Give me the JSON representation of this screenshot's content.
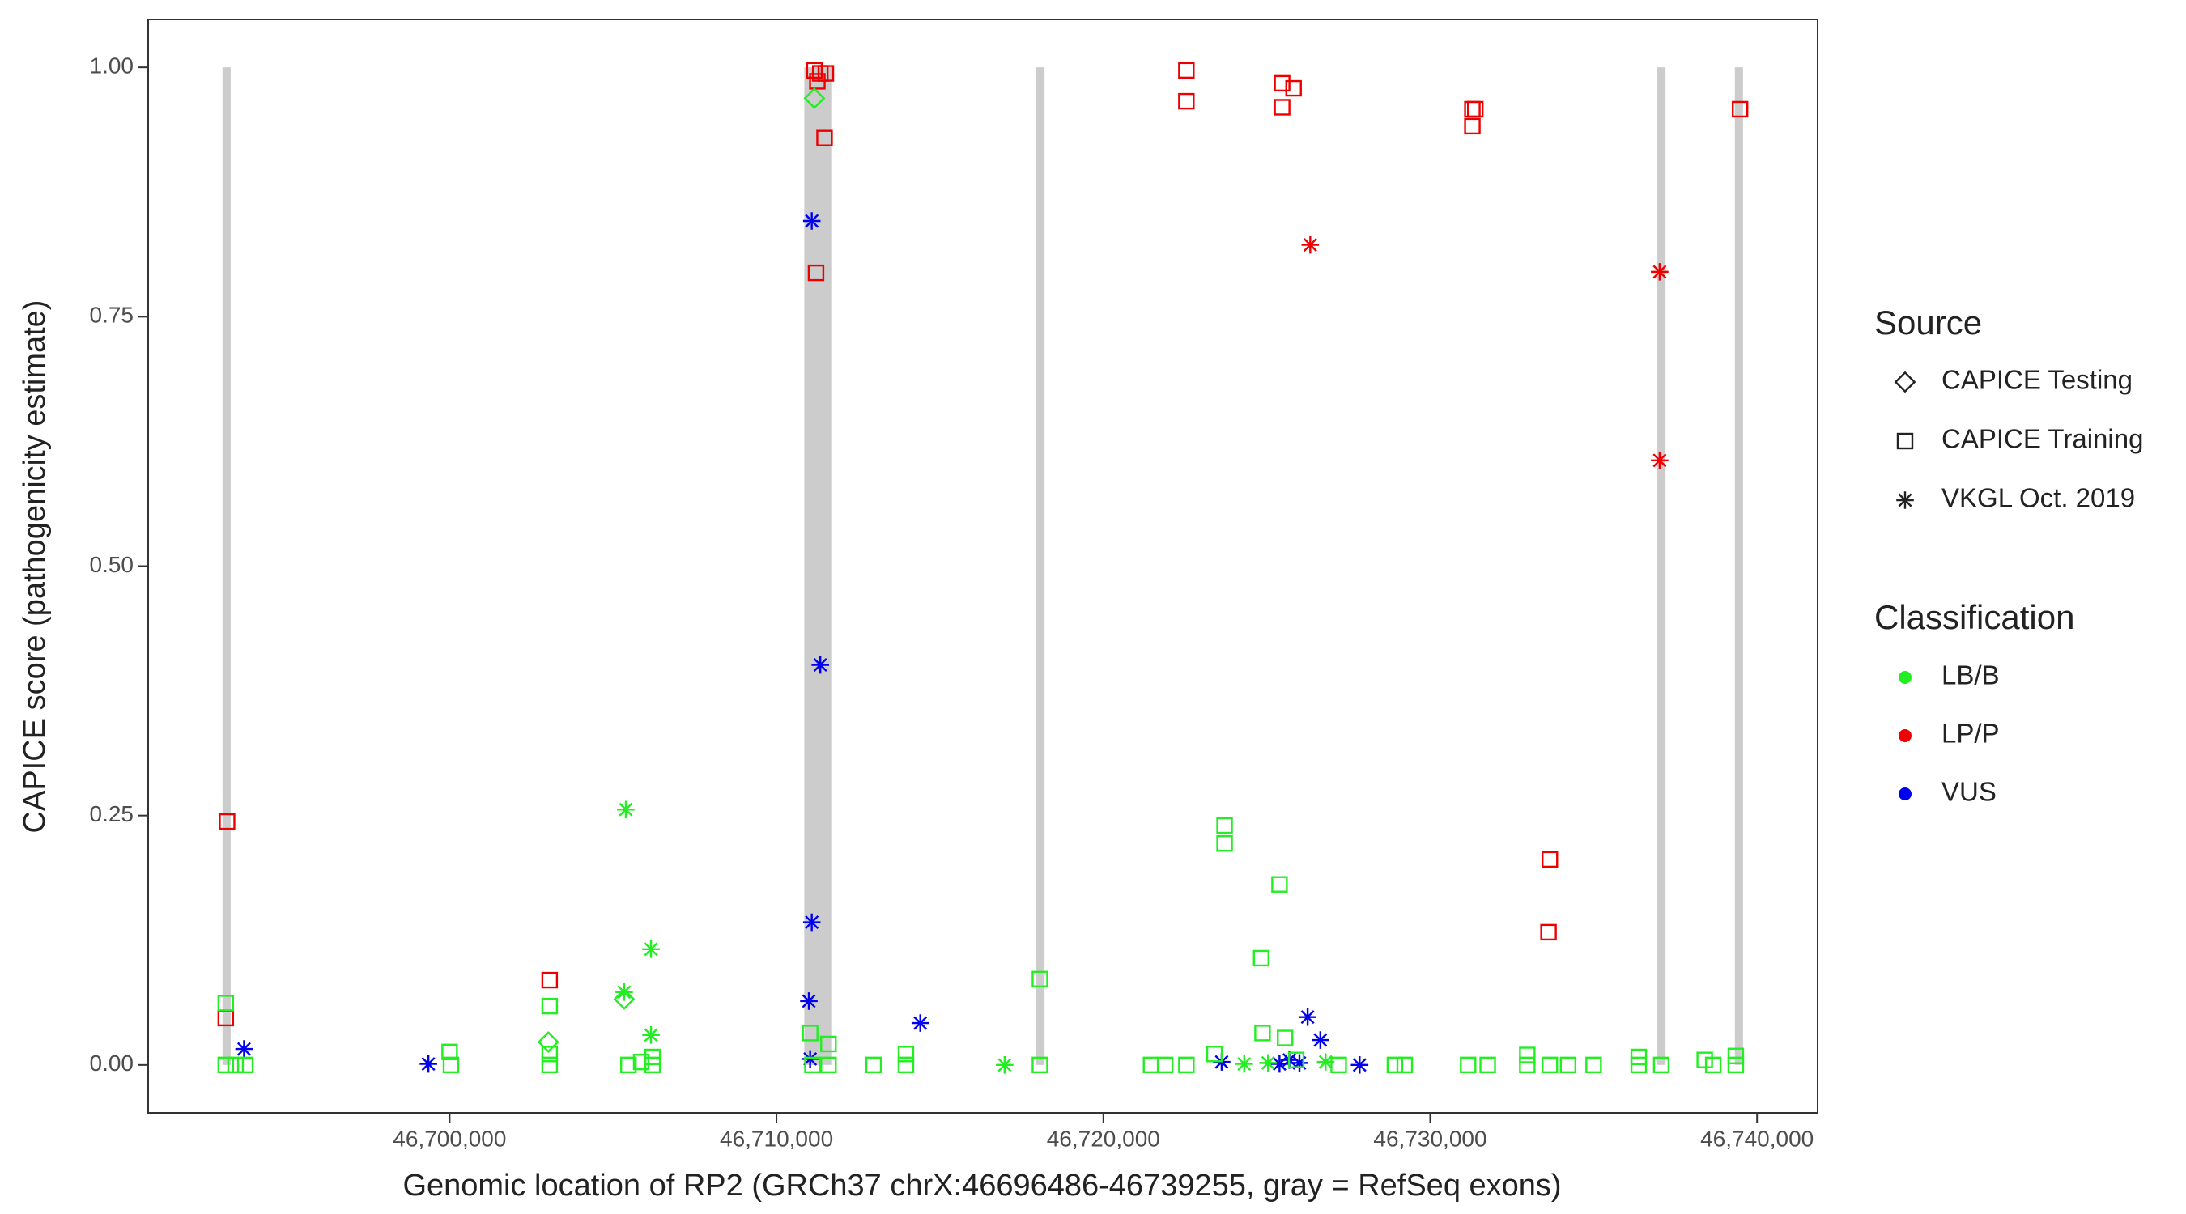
{
  "chart_data": {
    "type": "scatter",
    "xlabel": "Genomic location of RP2 (GRCh37 chrX:46696486-46739255, gray = RefSeq exons)",
    "ylabel": "CAPICE score (pathogenicity estimate)",
    "xlim": [
      46690776,
      46741853
    ],
    "ylim": [
      -0.048,
      1.048
    ],
    "xticks": [
      {
        "value": 46700000,
        "label": "46,700,000"
      },
      {
        "value": 46710000,
        "label": "46,710,000"
      },
      {
        "value": 46720000,
        "label": "46,720,000"
      },
      {
        "value": 46730000,
        "label": "46,730,000"
      },
      {
        "value": 46740000,
        "label": "46,740,000"
      }
    ],
    "yticks": [
      {
        "value": 0,
        "label": "0.00"
      },
      {
        "value": 0.25,
        "label": "0.25"
      },
      {
        "value": 0.5,
        "label": "0.50"
      },
      {
        "value": 0.75,
        "label": "0.75"
      },
      {
        "value": 1,
        "label": "1.00"
      }
    ],
    "exon_color": "#cccccc",
    "exons": [
      [
        46693050,
        46693300
      ],
      [
        46710850,
        46711700
      ],
      [
        46717950,
        46718200
      ],
      [
        46736950,
        46737200
      ],
      [
        46739320,
        46739570
      ]
    ],
    "exon_ylim": [
      0,
      1
    ],
    "legend_source": {
      "title": "Source",
      "items": [
        "CAPICE Testing",
        "CAPICE Training",
        "VKGL Oct. 2019"
      ],
      "shapes": [
        "diamond",
        "square",
        "asterisk"
      ]
    },
    "legend_classification": {
      "title": "Classification",
      "items": [
        "LB/B",
        "LP/P",
        "VUS"
      ],
      "colors": [
        "#22ee22",
        "#ee0000",
        "#0000ee"
      ]
    },
    "series": [
      {
        "source": 1,
        "classification": 1,
        "x": [
          46693190,
          46693150,
          46703060,
          46711160,
          46711340,
          46711510,
          46711250,
          46711470,
          46711210,
          46722540,
          46722540,
          46725470,
          46725470,
          46725820,
          46731290,
          46731380,
          46731290,
          46733660,
          46733620,
          46739480
        ],
        "values": [
          0.244,
          0.047,
          0.085,
          0.997,
          0.994,
          0.994,
          0.986,
          0.929,
          0.794,
          0.997,
          0.966,
          0.984,
          0.96,
          0.979,
          0.958,
          0.958,
          0.941,
          0.206,
          0.133,
          0.958
        ]
      },
      {
        "source": 2,
        "classification": 1,
        "x": [
          46726330,
          46737020,
          46737020
        ],
        "values": [
          0.822,
          0.795,
          0.606
        ]
      },
      {
        "source": 2,
        "classification": 2,
        "x": [
          46693710,
          46699350,
          46711080,
          46711340,
          46711080,
          46710990,
          46711030,
          46714400,
          46726250,
          46726640,
          46727840,
          46725390,
          46725690,
          46723620,
          46726000
        ],
        "values": [
          0.016,
          0.001,
          0.846,
          0.401,
          0.143,
          0.064,
          0.006,
          0.042,
          0.048,
          0.025,
          0,
          0.001,
          0.005,
          0.003,
          0.002
        ]
      },
      {
        "source": 2,
        "classification": 0,
        "x": [
          46705390,
          46706160,
          46705340,
          46706160,
          46716980,
          46724310,
          46725040,
          46726800
        ],
        "values": [
          0.256,
          0.116,
          0.073,
          0.03,
          0,
          0.001,
          0.002,
          0.003
        ]
      },
      {
        "source": 0,
        "classification": 0,
        "x": [
          46711160,
          46703020,
          46705340
        ],
        "values": [
          0.969,
          0.023,
          0.066
        ]
      },
      {
        "source": 1,
        "classification": 0,
        "x": [
          46693150,
          46693150,
          46693450,
          46693750,
          46700000,
          46700040,
          46703060,
          46703060,
          46703060,
          46705470,
          46705860,
          46706210,
          46706210,
          46711030,
          46711590,
          46711590,
          46712970,
          46713960,
          46713960,
          46718060,
          46718060,
          46721460,
          46721890,
          46722540,
          46723400,
          46723710,
          46723710,
          46724830,
          46725390,
          46724870,
          46725560,
          46727200,
          46728920,
          46729220,
          46731160,
          46731760,
          46732970,
          46732970,
          46733660,
          46734220,
          46735000,
          46736380,
          46736380,
          46737070,
          46738400,
          46738660,
          46739350,
          46739350,
          46711100,
          46725900
        ],
        "values": [
          0.062,
          0,
          0,
          0,
          0.013,
          0,
          0.059,
          0.011,
          0,
          0,
          0.003,
          0.008,
          0,
          0.032,
          0.021,
          0,
          0,
          0.011,
          0,
          0.086,
          0,
          0,
          0,
          0,
          0.011,
          0.24,
          0.222,
          0.107,
          0.181,
          0.032,
          0.027,
          0,
          0,
          0,
          0,
          0,
          0.01,
          0,
          0,
          0,
          0,
          0.008,
          0,
          0,
          0.005,
          0,
          0.009,
          0,
          0,
          0.005
        ]
      }
    ]
  }
}
